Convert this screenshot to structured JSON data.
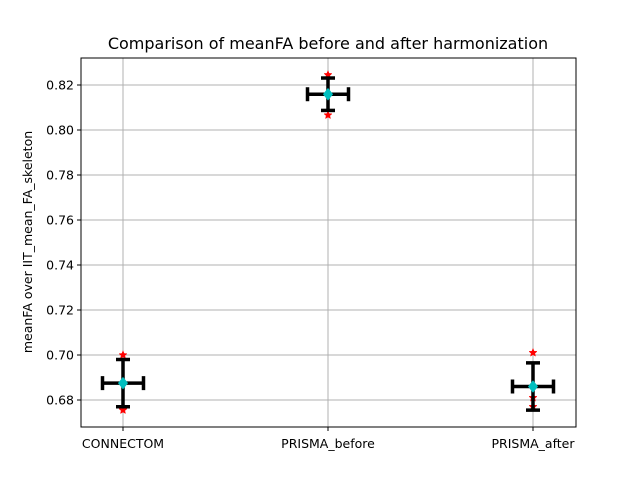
{
  "chart_data": {
    "type": "scatter",
    "title": "Comparison of meanFA before and after harmonization",
    "xlabel": "",
    "ylabel": "meanFA over IIT_mean_FA_skeleton",
    "categories": [
      "CONNECTOM",
      "PRISMA_before",
      "PRISMA_after"
    ],
    "ylim": [
      0.668,
      0.832
    ],
    "yticks": [
      "0.68",
      "0.70",
      "0.72",
      "0.74",
      "0.76",
      "0.78",
      "0.80",
      "0.82"
    ],
    "grid": true,
    "series": [
      {
        "marker": "diamond",
        "color": "#00bfbf",
        "points": [
          {
            "category": "CONNECTOM",
            "mean": 0.6875,
            "yerr": 0.0105,
            "xerr": 0.1
          },
          {
            "category": "PRISMA_before",
            "mean": 0.8159,
            "yerr": 0.0072,
            "xerr": 0.1
          },
          {
            "category": "PRISMA_after",
            "mean": 0.686,
            "yerr": 0.0105,
            "xerr": 0.1
          }
        ]
      },
      {
        "marker": "star",
        "color": "#ff0000",
        "points": [
          {
            "category": "CONNECTOM",
            "y": 0.7
          },
          {
            "category": "CONNECTOM",
            "y": 0.6755
          },
          {
            "category": "PRISMA_before",
            "y": 0.8245
          },
          {
            "category": "PRISMA_before",
            "y": 0.8066
          },
          {
            "category": "PRISMA_after",
            "y": 0.701
          },
          {
            "category": "PRISMA_after",
            "y": 0.681
          },
          {
            "category": "PRISMA_after",
            "y": 0.677
          }
        ]
      }
    ]
  }
}
